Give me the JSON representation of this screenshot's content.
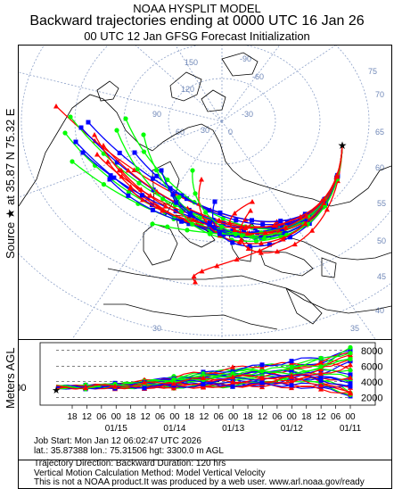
{
  "header": {
    "line1": "NOAA HYSPLIT MODEL",
    "line2": "Backward trajectories ending at 0000 UTC 16 Jan 26",
    "line3": "00 UTC 12 Jan    GFSG  Forecast Initialization"
  },
  "source_label": "Source ★ at  35.87 N   75.32 E",
  "ylabel": "Meters AGL",
  "map": {
    "lat_labels": [
      "75",
      "70",
      "65",
      "60",
      "55",
      "50",
      "45",
      "40",
      "35",
      "30"
    ],
    "lon_labels": [
      "150",
      "120",
      "90",
      "60",
      "30",
      "0",
      "-30",
      "-60",
      "-90"
    ]
  },
  "chart_data": {
    "type": "line",
    "title": "",
    "ylabel": "Meters AGL",
    "ylim": [
      1000,
      9000
    ],
    "source_height_label": "3300",
    "y_ticks": [
      "8000",
      "6000",
      "4000",
      "2000"
    ],
    "hour_ticks": [
      "18",
      "12",
      "06",
      "00",
      "18",
      "12",
      "06",
      "00",
      "18",
      "12",
      "06",
      "00",
      "18",
      "12",
      "06",
      "00",
      "18",
      "12",
      "06",
      "00"
    ],
    "date_ticks": [
      "01/15",
      "01/14",
      "01/13",
      "01/12",
      "01/11"
    ],
    "series_colors": [
      "#ff0000",
      "#0000ff",
      "#00ff00"
    ]
  },
  "footer": {
    "job": "Job Start: Mon Jan 12 06:02:47 UTC 2026",
    "coords": "lat.: 35.87388   lon.: 75.31506    hgt: 3300.0 m AGL",
    "direction": "Trajectory Direction: Backward         Duration: 120 hrs",
    "vertical": "Vertical Motion Calculation Method: Model Vertical Velocity",
    "notice": "This is not a NOAA product.It was produced by a web user. www.arl.noaa.gov/ready"
  }
}
